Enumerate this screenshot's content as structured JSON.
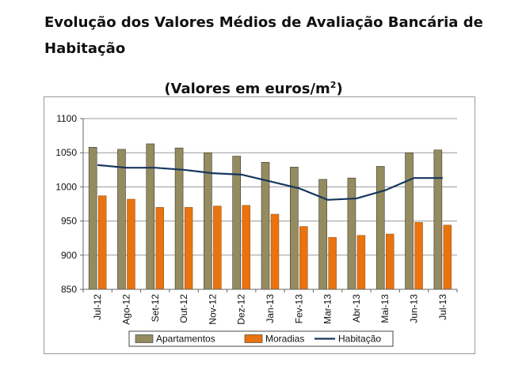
{
  "page": {
    "heading": "Evolução dos Valores Médios de Avaliação Bancária de Habitação"
  },
  "chart_data": {
    "type": "bar",
    "title": "(Valores em euros/m",
    "title_superscript": "2",
    "title_suffix": ")",
    "categories": [
      "Jul-12",
      "Ago-12",
      "Set-12",
      "Out-12",
      "Nov-12",
      "Dez-12",
      "Jan-13",
      "Fev-13",
      "Mar-13",
      "Abr-13",
      "Mai-13",
      "Jun-13",
      "Jul-13"
    ],
    "series": [
      {
        "name": "Apartamentos",
        "type": "bar",
        "color": "#958b60",
        "values": [
          1058,
          1055,
          1063,
          1057,
          1050,
          1045,
          1036,
          1029,
          1011,
          1013,
          1030,
          1050,
          1054
        ]
      },
      {
        "name": "Moradias",
        "type": "bar",
        "color": "#e8730f",
        "values": [
          987,
          982,
          970,
          970,
          972,
          973,
          960,
          942,
          926,
          929,
          931,
          948,
          944
        ]
      },
      {
        "name": "Habitação",
        "type": "line",
        "color": "#17365d",
        "values": [
          1032,
          1028,
          1028,
          1025,
          1020,
          1018,
          1008,
          998,
          981,
          983,
          995,
          1013,
          1013
        ]
      }
    ],
    "y_ticks": [
      850,
      900,
      950,
      1000,
      1050,
      1100
    ],
    "ylim": [
      850,
      1100
    ],
    "grid": true,
    "legend_position": "bottom"
  }
}
